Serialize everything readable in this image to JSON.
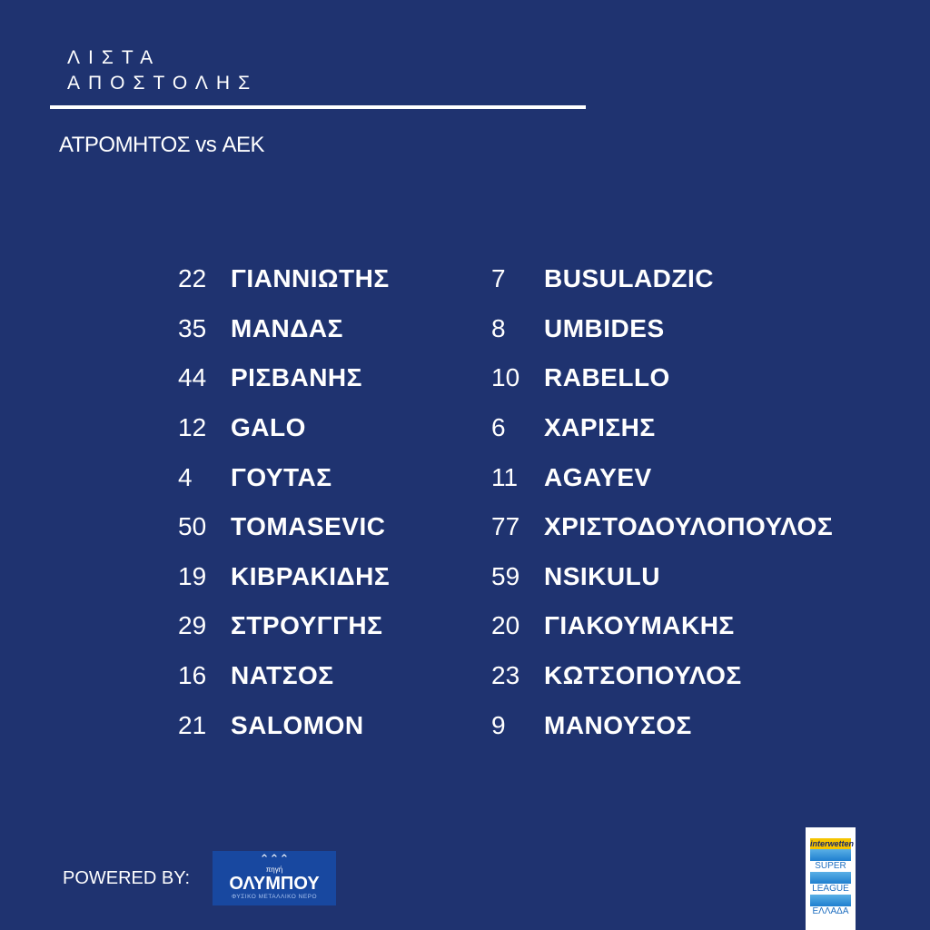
{
  "header": {
    "title_line1": "ΛΙΣΤΑ",
    "title_line2": "ΑΠΟΣΤΟΛΗΣ",
    "match": "ΑΤΡΟΜΗΤΟΣ vs ΑΕΚ"
  },
  "players_left": [
    {
      "number": "22",
      "name": "ΓΙΑΝΝΙΩΤΗΣ"
    },
    {
      "number": "35",
      "name": "ΜΑΝΔΑΣ"
    },
    {
      "number": "44",
      "name": "ΡΙΣΒΑΝΗΣ"
    },
    {
      "number": "12",
      "name": "GALO"
    },
    {
      "number": "4",
      "name": "ΓΟΥΤΑΣ"
    },
    {
      "number": "50",
      "name": "TOMASEVIC"
    },
    {
      "number": "19",
      "name": "ΚΙΒΡΑΚΙΔΗΣ"
    },
    {
      "number": "29",
      "name": "ΣΤΡΟΥΓΓΗΣ"
    },
    {
      "number": "16",
      "name": "ΝΑΤΣΟΣ"
    },
    {
      "number": "21",
      "name": "SALOMON"
    }
  ],
  "players_right": [
    {
      "number": "7",
      "name": "BUSULADZIC"
    },
    {
      "number": "8",
      "name": "UMBIDES"
    },
    {
      "number": "10",
      "name": "RABELLO"
    },
    {
      "number": "6",
      "name": "ΧΑΡΙΣΗΣ"
    },
    {
      "number": "11",
      "name": "AGAYEV"
    },
    {
      "number": "77",
      "name": "ΧΡΙΣΤΟΔΟΥΛΟΠΟΥΛΟΣ"
    },
    {
      "number": "59",
      "name": "NSIKULU"
    },
    {
      "number": "20",
      "name": "ΓΙΑΚΟΥΜΑΚΗΣ"
    },
    {
      "number": "23",
      "name": "ΚΩΤΣΟΠΟΥΛΟΣ"
    },
    {
      "number": "9",
      "name": "ΜΑΝΟΥΣΟΣ"
    }
  ],
  "footer": {
    "powered_by": "POWERED BY:",
    "sponsor_logo": {
      "top": "πηγή",
      "brand": "ΟΛΥΜΠΟΥ",
      "sub": "ΦΥΣΙΚΟ ΜΕΤΑΛΛΙΚΟ ΝΕΡΟ"
    },
    "league_logo": {
      "sponsor": "interwetten",
      "line1": "SUPER",
      "line2": "LEAGUE",
      "line3": "ΕΛΛΑΔΑ"
    }
  },
  "colors": {
    "background": "#1f3370",
    "text": "#ffffff",
    "sponsor_bg": "#1848a0",
    "league_sponsor": "#f5c400"
  }
}
